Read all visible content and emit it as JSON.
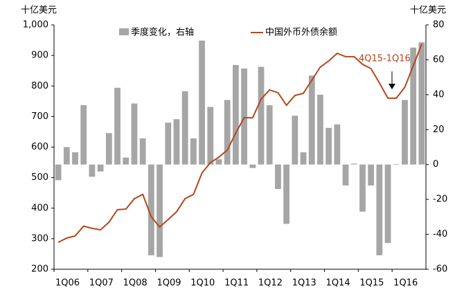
{
  "chart_data": {
    "type": "bar_line",
    "left_unit": "十亿美元",
    "right_unit": "十亿美元",
    "annotation": "4Q15-1Q16",
    "categories": [
      "1Q06",
      null,
      null,
      null,
      "1Q07",
      null,
      null,
      null,
      "1Q08",
      null,
      null,
      null,
      "1Q09",
      null,
      null,
      null,
      "1Q10",
      null,
      null,
      null,
      "1Q11",
      null,
      null,
      null,
      "1Q12",
      null,
      null,
      null,
      "1Q13",
      null,
      null,
      null,
      "1Q14",
      null,
      null,
      null,
      "1Q15",
      null,
      null,
      null,
      "1Q16",
      null,
      null,
      null
    ],
    "series": [
      {
        "name": "季度变化，右轴",
        "color": "#a6a6a6",
        "axis": "y2",
        "kind": "bar",
        "values": [
          -9,
          10,
          7,
          34,
          -7,
          -4,
          18,
          44,
          4,
          35,
          15,
          -52,
          -53,
          24,
          26,
          42,
          15,
          71,
          33,
          3,
          37,
          57,
          55,
          -2,
          56,
          34,
          -14,
          -34,
          28,
          7,
          51,
          40,
          21,
          23,
          -12,
          0.5,
          -27,
          -12,
          -52,
          -45,
          0.3,
          37,
          67,
          70
        ]
      },
      {
        "name": "中国外币外债余额",
        "color": "#b5461a",
        "axis": "y",
        "kind": "line",
        "values": [
          288,
          302,
          309,
          341,
          334,
          329,
          354,
          395,
          397,
          431,
          445,
          372,
          338,
          363,
          388,
          431,
          445,
          515,
          549,
          567,
          590,
          646,
          696,
          696,
          757,
          787,
          778,
          737,
          769,
          776,
          819,
          862,
          882,
          907,
          896,
          896,
          871,
          857,
          810,
          760,
          760,
          796,
          866,
          937
        ]
      }
    ],
    "ylim": [
      200,
      1000
    ],
    "yticks": [
      200,
      300,
      400,
      500,
      600,
      700,
      800,
      900,
      {
        "value": 1000,
        "label": "1,000"
      }
    ],
    "y2lim": [
      -60,
      80
    ],
    "y2ticks": [
      -60,
      -40,
      -20,
      0,
      20,
      40,
      60,
      80
    ]
  }
}
